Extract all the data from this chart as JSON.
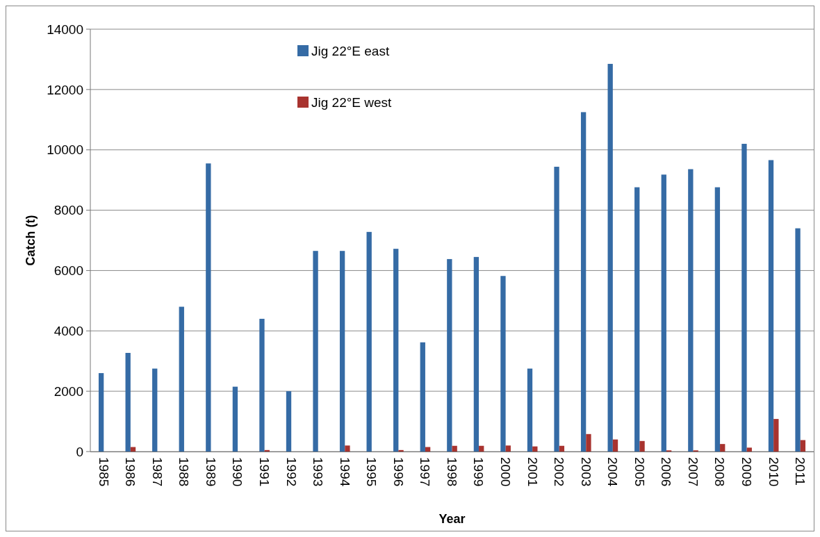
{
  "chart_data": {
    "type": "bar",
    "xlabel": "Year",
    "ylabel": "Catch (t)",
    "categories": [
      "1985",
      "1986",
      "1987",
      "1988",
      "1989",
      "1990",
      "1991",
      "1992",
      "1993",
      "1994",
      "1995",
      "1996",
      "1997",
      "1998",
      "1999",
      "2000",
      "2001",
      "2002",
      "2003",
      "2004",
      "2005",
      "2006",
      "2007",
      "2008",
      "2009",
      "2010",
      "2011"
    ],
    "series": [
      {
        "name": "Jig 22°E east",
        "color": "#356ba5",
        "values": [
          2600,
          3270,
          2750,
          4800,
          9550,
          2150,
          4400,
          2000,
          6650,
          6650,
          7280,
          6720,
          3620,
          6380,
          6450,
          5820,
          2750,
          9440,
          11250,
          12850,
          8760,
          9180,
          9360,
          8760,
          10200,
          9660,
          7400
        ]
      },
      {
        "name": "Jig 22°E west",
        "color": "#a8332f",
        "values": [
          0,
          150,
          0,
          0,
          0,
          0,
          50,
          0,
          0,
          200,
          0,
          50,
          150,
          190,
          190,
          200,
          170,
          190,
          580,
          400,
          350,
          40,
          40,
          250,
          130,
          1080,
          380
        ]
      }
    ],
    "ylim": [
      0,
      14000
    ],
    "yticks": [
      0,
      2000,
      4000,
      6000,
      8000,
      10000,
      12000,
      14000
    ],
    "grid": "y",
    "legend": "top"
  }
}
